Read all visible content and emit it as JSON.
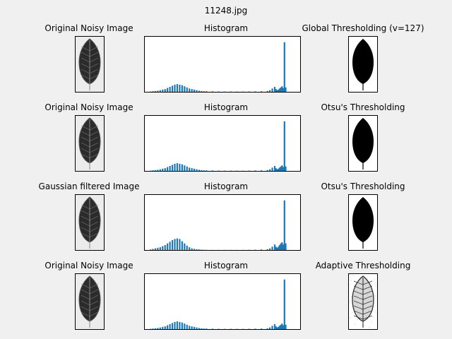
{
  "figure_title": "11248.jpg",
  "colors": {
    "bar": "#1f77b4",
    "leaf_dark": "#2b2b2b",
    "background": "#f0f0f0"
  },
  "icons": {
    "leaf": "leaf-image-icon",
    "mask": "leaf-mask-icon"
  },
  "rows": [
    {
      "left_title": "Original Noisy Image",
      "mid_title": "Histogram",
      "right_title": "Global Thresholding (v=127)",
      "thresh_kind": "mask"
    },
    {
      "left_title": "Original Noisy Image",
      "mid_title": "Histogram",
      "right_title": "Otsu's Thresholding",
      "thresh_kind": "mask"
    },
    {
      "left_title": "Gaussian filtered Image",
      "mid_title": "Histogram",
      "right_title": "Otsu's Thresholding",
      "thresh_kind": "mask"
    },
    {
      "left_title": "Original Noisy Image",
      "mid_title": "Histogram",
      "right_title": "Adaptive Thresholding",
      "thresh_kind": "adaptive"
    }
  ],
  "chart_data": [
    {
      "type": "bar",
      "title": "Histogram",
      "x": [
        8,
        12,
        16,
        20,
        24,
        28,
        32,
        36,
        40,
        44,
        48,
        52,
        56,
        60,
        64,
        68,
        72,
        76,
        80,
        84,
        88,
        92,
        96,
        100,
        110,
        120,
        130,
        140,
        150,
        160,
        170,
        180,
        190,
        200,
        204,
        208,
        212,
        214,
        216,
        218,
        220,
        222,
        224,
        226,
        228,
        230
      ],
      "values": [
        0.5,
        1,
        1.5,
        2,
        3,
        4,
        5,
        7,
        9,
        11,
        13,
        14,
        13,
        12,
        10,
        8,
        6,
        5,
        4,
        3,
        2,
        1.5,
        1,
        1,
        0.8,
        0.6,
        0.5,
        0.5,
        0.5,
        0.5,
        0.6,
        0.8,
        1,
        1.5,
        3,
        6,
        9,
        5,
        3,
        4,
        6,
        8,
        10,
        7,
        90,
        8
      ],
      "ylim": [
        0,
        100
      ],
      "xlim": [
        0,
        255
      ]
    },
    {
      "type": "bar",
      "title": "Histogram",
      "x": [
        8,
        12,
        16,
        20,
        24,
        28,
        32,
        36,
        40,
        44,
        48,
        52,
        56,
        60,
        64,
        68,
        72,
        76,
        80,
        84,
        88,
        92,
        96,
        100,
        110,
        120,
        130,
        140,
        150,
        160,
        170,
        180,
        190,
        200,
        204,
        208,
        212,
        214,
        216,
        218,
        220,
        222,
        224,
        226,
        228,
        230
      ],
      "values": [
        0.5,
        1,
        1.5,
        2,
        3,
        4,
        5,
        7,
        9,
        11,
        13,
        14,
        13,
        12,
        10,
        8,
        6,
        5,
        4,
        3,
        2,
        1.5,
        1,
        1,
        0.8,
        0.6,
        0.5,
        0.5,
        0.5,
        0.5,
        0.6,
        0.8,
        1,
        1.5,
        3,
        6,
        9,
        5,
        3,
        4,
        6,
        8,
        10,
        7,
        90,
        8
      ],
      "ylim": [
        0,
        100
      ],
      "xlim": [
        0,
        255
      ]
    },
    {
      "type": "bar",
      "title": "Histogram",
      "x": [
        8,
        12,
        16,
        20,
        24,
        28,
        32,
        36,
        40,
        44,
        48,
        52,
        56,
        60,
        64,
        68,
        72,
        76,
        80,
        84,
        88,
        92,
        96,
        100,
        110,
        120,
        130,
        140,
        150,
        160,
        170,
        180,
        190,
        200,
        204,
        208,
        212,
        214,
        216,
        218,
        220,
        222,
        224,
        226,
        228,
        230
      ],
      "values": [
        1,
        2,
        3,
        4,
        5,
        7,
        9,
        12,
        15,
        18,
        20,
        21,
        20,
        16,
        12,
        8,
        5,
        3,
        2,
        1.5,
        1,
        0.6,
        0.4,
        0.3,
        0.2,
        0.2,
        0.2,
        0.2,
        0.2,
        0.3,
        0.4,
        0.6,
        1,
        1.5,
        3,
        6,
        10,
        6,
        4,
        6,
        9,
        12,
        14,
        10,
        90,
        12
      ],
      "ylim": [
        0,
        100
      ],
      "xlim": [
        0,
        255
      ]
    },
    {
      "type": "bar",
      "title": "Histogram",
      "x": [
        8,
        12,
        16,
        20,
        24,
        28,
        32,
        36,
        40,
        44,
        48,
        52,
        56,
        60,
        64,
        68,
        72,
        76,
        80,
        84,
        88,
        92,
        96,
        100,
        110,
        120,
        130,
        140,
        150,
        160,
        170,
        180,
        190,
        200,
        204,
        208,
        212,
        214,
        216,
        218,
        220,
        222,
        224,
        226,
        228,
        230
      ],
      "values": [
        0.5,
        1,
        1.5,
        2,
        3,
        4,
        5,
        7,
        9,
        11,
        13,
        14,
        13,
        12,
        10,
        8,
        6,
        5,
        4,
        3,
        2,
        1.5,
        1,
        1,
        0.8,
        0.6,
        0.5,
        0.5,
        0.5,
        0.5,
        0.6,
        0.8,
        1,
        1.5,
        3,
        6,
        9,
        5,
        3,
        4,
        6,
        8,
        10,
        7,
        90,
        8
      ],
      "ylim": [
        0,
        100
      ],
      "xlim": [
        0,
        255
      ]
    }
  ]
}
